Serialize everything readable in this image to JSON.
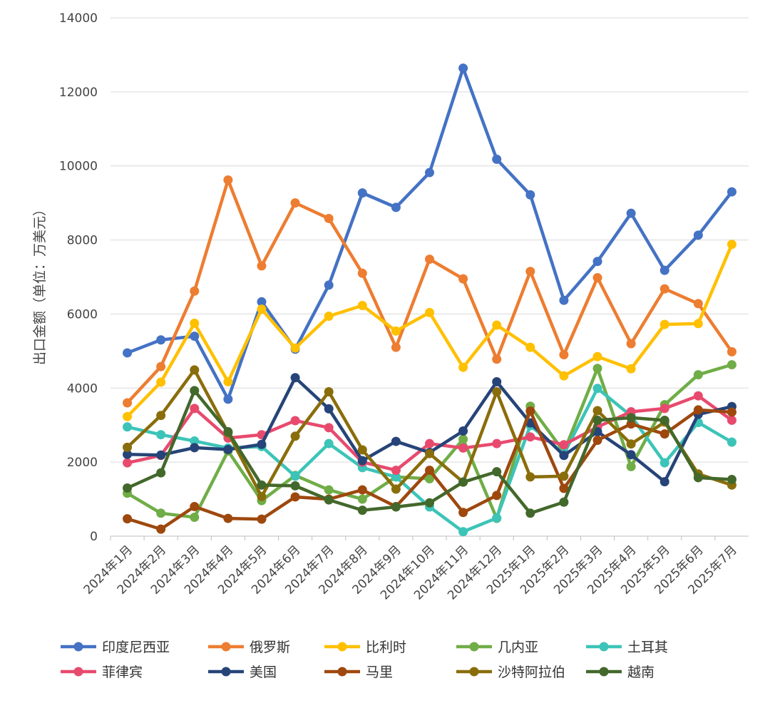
{
  "chart_data": {
    "type": "line",
    "y_label": "出口金额（单位：万美元）",
    "categories": [
      "2024年1月",
      "2024年2月",
      "2024年3月",
      "2024年4月",
      "2024年5月",
      "2024年6月",
      "2024年7月",
      "2024年8月",
      "2024年9月",
      "2024年10月",
      "2024年11月",
      "2024年12月",
      "2025年1月",
      "2025年2月",
      "2025年3月",
      "2025年4月",
      "2025年5月",
      "2025年6月",
      "2025年7月"
    ],
    "ylim": [
      0,
      14000
    ],
    "yticks": [
      0,
      2000,
      4000,
      6000,
      8000,
      10000,
      12000,
      14000
    ],
    "grid": true,
    "series": [
      {
        "name": "印度尼西亚",
        "color": "#4472c4",
        "values": [
          4950,
          5300,
          5400,
          3700,
          6330,
          5050,
          6780,
          9270,
          8880,
          9820,
          12640,
          10180,
          9220,
          6370,
          7420,
          8720,
          7180,
          8130,
          9300
        ]
      },
      {
        "name": "俄罗斯",
        "color": "#ed7d31",
        "values": [
          3600,
          4580,
          6620,
          9620,
          7300,
          9000,
          8580,
          7100,
          5100,
          7480,
          6950,
          4780,
          7150,
          4900,
          6980,
          5200,
          6680,
          6280,
          4980
        ]
      },
      {
        "name": "比利时",
        "color": "#ffc000",
        "values": [
          3230,
          4160,
          5750,
          4170,
          6130,
          5080,
          5940,
          6230,
          5540,
          6040,
          4560,
          5700,
          5100,
          4330,
          4850,
          4520,
          5720,
          5740,
          7880
        ]
      },
      {
        "name": "几内亚",
        "color": "#70ad47",
        "values": [
          1160,
          620,
          510,
          2300,
          960,
          1640,
          1250,
          1000,
          1600,
          1550,
          2620,
          480,
          3510,
          2280,
          4530,
          1880,
          3550,
          4360,
          4630
        ]
      },
      {
        "name": "土耳其",
        "color": "#3cc4b8",
        "values": [
          2950,
          2740,
          2570,
          2380,
          2420,
          1620,
          2500,
          1850,
          1600,
          790,
          120,
          490,
          2990,
          2220,
          3990,
          3250,
          1980,
          3070,
          2540
        ]
      },
      {
        "name": "菲律宾",
        "color": "#e84a6e",
        "values": [
          1980,
          2180,
          3450,
          2650,
          2740,
          3120,
          2930,
          2000,
          1780,
          2500,
          2380,
          2500,
          2680,
          2470,
          2950,
          3360,
          3450,
          3790,
          3130
        ]
      },
      {
        "name": "美国",
        "color": "#264478",
        "values": [
          2210,
          2190,
          2390,
          2340,
          2480,
          4280,
          3440,
          2040,
          2560,
          2260,
          2840,
          4170,
          3060,
          2180,
          2820,
          2200,
          1470,
          3290,
          3500
        ]
      },
      {
        "name": "马里",
        "color": "#9e480e",
        "values": [
          470,
          190,
          800,
          480,
          460,
          1060,
          1000,
          1250,
          800,
          1780,
          640,
          1100,
          3380,
          1290,
          2590,
          3030,
          2760,
          3410,
          3350
        ]
      },
      {
        "name": "沙特阿拉伯",
        "color": "#8a6d0b",
        "values": [
          2400,
          3260,
          4490,
          2790,
          1070,
          2700,
          3900,
          2330,
          1270,
          2230,
          1460,
          3900,
          1600,
          1620,
          3390,
          2490,
          3080,
          1680,
          1380
        ]
      },
      {
        "name": "越南",
        "color": "#43682b",
        "values": [
          1300,
          1710,
          3930,
          2820,
          1380,
          1360,
          980,
          700,
          790,
          900,
          1460,
          1740,
          620,
          920,
          3130,
          3200,
          3130,
          1580,
          1530
        ]
      }
    ]
  }
}
